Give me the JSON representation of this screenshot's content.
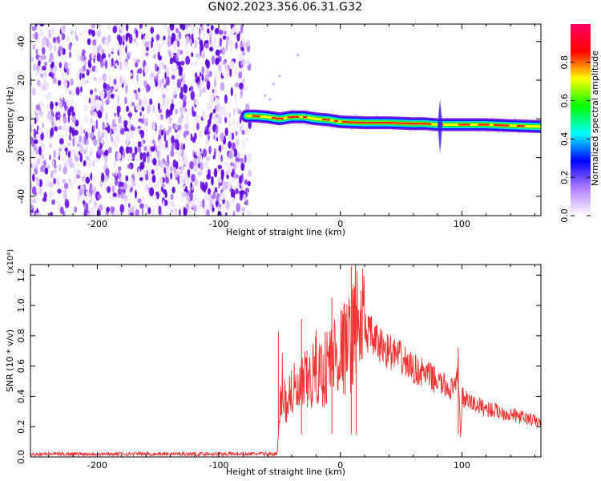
{
  "title": "GN02.2023.356.06.31.G32",
  "colors": {
    "snr_line": "#f03232",
    "background_dots": "#7a1fe0",
    "axis": "#000000"
  },
  "chart_data": [
    {
      "type": "heatmap",
      "title": "GN02.2023.356.06.31.G32",
      "xlabel": "Height of straight line (km)",
      "ylabel": "Frequency (Hz)",
      "xlim": [
        -255,
        165
      ],
      "ylim": [
        -50,
        49
      ],
      "x_ticks": [
        -200,
        -100,
        0,
        100
      ],
      "y_ticks": [
        -40,
        -20,
        0,
        20,
        40
      ],
      "noise_region_x": [
        -255,
        -77
      ],
      "signal_ridge": {
        "x": [
          -77,
          -70,
          -60,
          -50,
          -40,
          -30,
          -20,
          -10,
          0,
          20,
          40,
          60,
          70,
          80,
          90,
          100,
          120,
          140,
          165
        ],
        "freq": [
          1.5,
          1.5,
          1.0,
          0,
          1.0,
          1.0,
          0,
          -0.5,
          -1.5,
          -2.0,
          -2.0,
          -2.5,
          -2.5,
          -3.0,
          -3.0,
          -3.0,
          -3.0,
          -3.5,
          -4.0
        ]
      },
      "spike_at_x": 82,
      "colorbar": {
        "label": "Normalized spectral amplitude",
        "range": [
          0.0,
          1.0
        ],
        "ticks": [
          "0.0",
          "0.2",
          "0.4",
          "0.6",
          "0.8"
        ],
        "colors": [
          "#ffffff",
          "#b07cff",
          "#0000ff",
          "#00ffff",
          "#00ff00",
          "#ffff00",
          "#ff0000",
          "#ff0066"
        ]
      }
    },
    {
      "type": "line",
      "xlabel": "Height of straight line (km)",
      "ylabel": "SNR (10 * v/v)",
      "y_multiplier": "(x10⁴)",
      "xlim": [
        -255,
        165
      ],
      "ylim": [
        0.0,
        1.27
      ],
      "x_ticks": [
        -200,
        -100,
        0,
        100
      ],
      "y_ticks": [
        "0.0",
        "0.2",
        "0.4",
        "0.6",
        "0.8",
        "1.0",
        "1.2"
      ],
      "series": [
        {
          "x": [
            -255,
            -200,
            -150,
            -100,
            -60,
            -52,
            -50,
            -48,
            -45,
            -40,
            -35,
            -30,
            -25,
            -20,
            -15,
            -10,
            -5,
            0,
            5,
            10,
            12,
            15,
            18,
            20,
            25,
            30,
            40,
            50,
            60,
            70,
            80,
            90,
            95,
            97,
            99,
            100,
            102,
            110,
            120,
            130,
            140,
            150,
            160,
            165
          ],
          "y": [
            0.02,
            0.02,
            0.02,
            0.02,
            0.02,
            0.02,
            0.25,
            0.5,
            0.35,
            0.45,
            0.4,
            0.48,
            0.5,
            0.58,
            0.55,
            0.62,
            0.68,
            0.7,
            0.72,
            0.78,
            1.05,
            0.8,
            0.9,
            0.85,
            0.8,
            0.75,
            0.7,
            0.65,
            0.58,
            0.55,
            0.5,
            0.45,
            0.45,
            0.6,
            0.1,
            0.4,
            0.38,
            0.35,
            0.32,
            0.3,
            0.28,
            0.26,
            0.24,
            0.22
          ]
        }
      ],
      "spikes": [
        {
          "x": -51,
          "y": 0.83
        },
        {
          "x": -32,
          "y": 0.91
        },
        {
          "x": -7,
          "y": 1.05
        },
        {
          "x": 9,
          "y": 1.26
        },
        {
          "x": 13,
          "y": 1.0
        },
        {
          "x": 97,
          "y": 0.72
        }
      ]
    }
  ]
}
